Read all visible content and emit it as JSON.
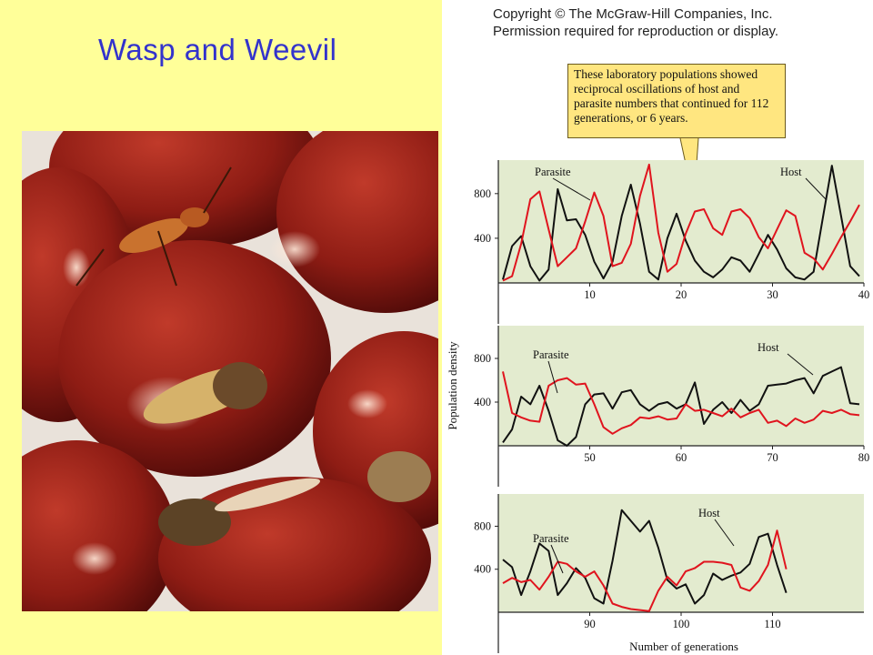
{
  "slide": {
    "title": "Wasp and Weevil"
  },
  "figure": {
    "copyright_line1": "Copyright © The McGraw-Hill Companies, Inc.",
    "copyright_line2": "Permission required for reproduction or display.",
    "callout": "These laboratory populations showed reciprocal oscillations of host and parasite numbers that continued for 112 generations, or 6 years."
  },
  "colors": {
    "host": "#111111",
    "parasite": "#e0141e",
    "plot_bg": "#e3ebcf",
    "slide_bg": "#ffff99",
    "title": "#3333cc"
  },
  "chart_data": [
    {
      "type": "line",
      "ylabel": "Population density",
      "xlabel": "",
      "xlim": [
        0,
        40
      ],
      "ylim": [
        0,
        1100
      ],
      "xticks": [
        10,
        20,
        30,
        40
      ],
      "yticks": [
        400,
        800
      ],
      "series": [
        {
          "name": "Host",
          "x": [
            0.5,
            1.5,
            2.5,
            3.5,
            4.5,
            5.5,
            6.5,
            7.5,
            8.5,
            9.5,
            10.5,
            11.5,
            12.5,
            13.5,
            14.5,
            15.5,
            16.5,
            17.5,
            18.5,
            19.5,
            20.5,
            21.5,
            22.5,
            23.5,
            24.5,
            25.5,
            26.5,
            27.5,
            28.5,
            29.5,
            30.5,
            31.5,
            32.5,
            33.5,
            34.5,
            35.5,
            36.5,
            37.5,
            38.5,
            39.5
          ],
          "values": [
            30,
            330,
            420,
            150,
            20,
            120,
            840,
            560,
            570,
            430,
            190,
            40,
            190,
            600,
            880,
            530,
            100,
            30,
            400,
            620,
            380,
            200,
            100,
            50,
            120,
            230,
            200,
            100,
            260,
            430,
            300,
            130,
            50,
            30,
            100,
            580,
            1050,
            600,
            150,
            60
          ]
        },
        {
          "name": "Parasite",
          "x": [
            0.5,
            1.5,
            2.5,
            3.5,
            4.5,
            5.5,
            6.5,
            7.5,
            8.5,
            9.5,
            10.5,
            11.5,
            12.5,
            13.5,
            14.5,
            15.5,
            16.5,
            17.5,
            18.5,
            19.5,
            20.5,
            21.5,
            22.5,
            23.5,
            24.5,
            25.5,
            26.5,
            27.5,
            28.5,
            29.5,
            30.5,
            31.5,
            32.5,
            33.5,
            34.5,
            35.5,
            36.5,
            37.5,
            38.5,
            39.5
          ],
          "values": [
            20,
            60,
            350,
            750,
            820,
            480,
            150,
            230,
            310,
            550,
            810,
            600,
            150,
            180,
            350,
            780,
            1060,
            450,
            100,
            170,
            440,
            640,
            660,
            490,
            430,
            640,
            660,
            580,
            410,
            310,
            480,
            650,
            600,
            270,
            220,
            120,
            260,
            410,
            550,
            700
          ]
        }
      ]
    },
    {
      "type": "line",
      "ylabel": "Population density",
      "xlabel": "",
      "xlim": [
        40,
        80
      ],
      "ylim": [
        0,
        1100
      ],
      "xticks": [
        50,
        60,
        70,
        80
      ],
      "yticks": [
        400,
        800
      ],
      "series": [
        {
          "name": "Host",
          "x": [
            40.5,
            41.5,
            42.5,
            43.5,
            44.5,
            45.5,
            46.5,
            47.5,
            48.5,
            49.5,
            50.5,
            51.5,
            52.5,
            53.5,
            54.5,
            55.5,
            56.5,
            57.5,
            58.5,
            59.5,
            60.5,
            61.5,
            62.5,
            63.5,
            64.5,
            65.5,
            66.5,
            67.5,
            68.5,
            69.5,
            70.5,
            71.5,
            72.5,
            73.5,
            74.5,
            75.5,
            76.5,
            77.5,
            78.5,
            79.5
          ],
          "values": [
            30,
            150,
            450,
            380,
            550,
            320,
            50,
            0,
            80,
            380,
            470,
            480,
            340,
            490,
            510,
            380,
            320,
            380,
            400,
            340,
            380,
            580,
            200,
            330,
            400,
            300,
            420,
            320,
            380,
            550,
            560,
            570,
            600,
            620,
            480,
            640,
            680,
            720,
            390,
            380
          ]
        },
        {
          "name": "Parasite",
          "x": [
            40.5,
            41.5,
            42.5,
            43.5,
            44.5,
            45.5,
            46.5,
            47.5,
            48.5,
            49.5,
            50.5,
            51.5,
            52.5,
            53.5,
            54.5,
            55.5,
            56.5,
            57.5,
            58.5,
            59.5,
            60.5,
            61.5,
            62.5,
            63.5,
            64.5,
            65.5,
            66.5,
            67.5,
            68.5,
            69.5,
            70.5,
            71.5,
            72.5,
            73.5,
            74.5,
            75.5,
            76.5,
            77.5,
            78.5,
            79.5
          ],
          "values": [
            680,
            300,
            260,
            230,
            220,
            550,
            600,
            620,
            560,
            570,
            380,
            170,
            110,
            160,
            190,
            260,
            250,
            270,
            240,
            250,
            380,
            320,
            330,
            300,
            270,
            340,
            260,
            300,
            330,
            210,
            230,
            180,
            250,
            210,
            240,
            320,
            300,
            330,
            290,
            280
          ]
        }
      ]
    },
    {
      "type": "line",
      "ylabel": "Population density",
      "xlabel": "Number of generations",
      "xlim": [
        80,
        120
      ],
      "ylim": [
        0,
        1100
      ],
      "xticks": [
        90,
        100,
        110
      ],
      "yticks": [
        400,
        800
      ],
      "series": [
        {
          "name": "Host",
          "x": [
            80.5,
            81.5,
            82.5,
            83.5,
            84.5,
            85.5,
            86.5,
            87.5,
            88.5,
            89.5,
            90.5,
            91.5,
            92.5,
            93.5,
            94.5,
            95.5,
            96.5,
            97.5,
            98.5,
            99.5,
            100.5,
            101.5,
            102.5,
            103.5,
            104.5,
            105.5,
            106.5,
            107.5,
            108.5,
            109.5,
            110.5,
            111.5
          ],
          "values": [
            490,
            420,
            160,
            380,
            640,
            570,
            160,
            270,
            410,
            320,
            130,
            80,
            480,
            950,
            850,
            750,
            850,
            600,
            300,
            220,
            260,
            80,
            160,
            360,
            300,
            340,
            370,
            450,
            700,
            730,
            440,
            180
          ]
        },
        {
          "name": "Parasite",
          "x": [
            80.5,
            81.5,
            82.5,
            83.5,
            84.5,
            85.5,
            86.5,
            87.5,
            88.5,
            89.5,
            90.5,
            91.5,
            92.5,
            93.5,
            94.5,
            95.5,
            96.5,
            97.5,
            98.5,
            99.5,
            100.5,
            101.5,
            102.5,
            103.5,
            104.5,
            105.5,
            106.5,
            107.5,
            108.5,
            109.5,
            110.5,
            111.5
          ],
          "values": [
            270,
            320,
            280,
            300,
            210,
            330,
            470,
            450,
            380,
            330,
            380,
            250,
            80,
            50,
            30,
            20,
            10,
            200,
            330,
            250,
            380,
            410,
            470,
            470,
            460,
            440,
            230,
            200,
            290,
            440,
            760,
            400
          ]
        }
      ]
    }
  ],
  "chart_labels": [
    {
      "parasite": "Parasite",
      "host": "Host"
    },
    {
      "parasite": "Parasite",
      "host": "Host"
    },
    {
      "parasite": "Parasite",
      "host": "Host"
    }
  ]
}
